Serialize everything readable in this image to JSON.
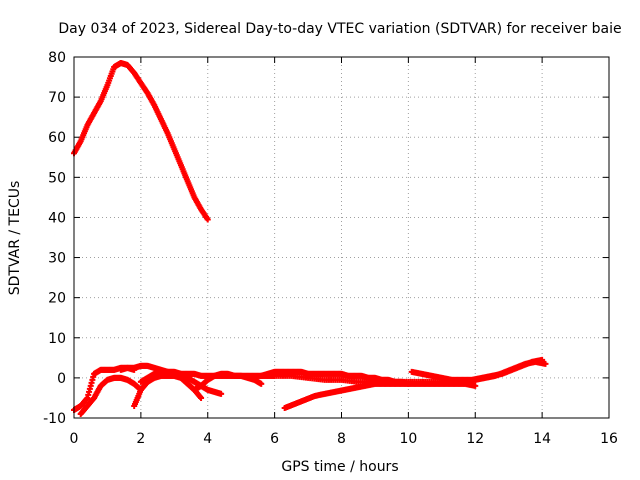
{
  "chart_data": {
    "type": "scatter",
    "title": "Day 034 of 2023, Sidereal Day-to-day VTEC variation (SDTVAR) for receiver baie",
    "xlabel": "GPS time / hours",
    "ylabel": "SDTVAR / TECUs",
    "xlim": [
      0,
      16
    ],
    "ylim": [
      -10,
      80
    ],
    "x_ticks": [
      "0",
      "2",
      "4",
      "6",
      "8",
      "10",
      "12",
      "14",
      "16"
    ],
    "y_ticks": [
      "-10",
      "0",
      "10",
      "20",
      "30",
      "40",
      "50",
      "60",
      "70",
      "80"
    ],
    "grid": true,
    "marker_color": "#ff0000",
    "series": [
      {
        "name": "arc-high",
        "x": [
          0,
          0.2,
          0.4,
          0.6,
          0.8,
          1.0,
          1.2,
          1.4,
          1.6,
          1.8,
          2.0,
          2.2,
          2.4,
          2.6,
          2.8,
          3.0,
          3.2,
          3.4,
          3.6,
          3.8,
          4.0
        ],
        "y": [
          56,
          59,
          63,
          66,
          69,
          73,
          77.5,
          78.5,
          78,
          76,
          73.5,
          71,
          68,
          64.5,
          61,
          57,
          53,
          49,
          45,
          42,
          39.5
        ]
      },
      {
        "name": "arc-low-1",
        "x": [
          0,
          0.2,
          0.4,
          0.6,
          0.8,
          1.0,
          1.2,
          1.4,
          1.6,
          1.8
        ],
        "y": [
          -8,
          -7,
          -5,
          1,
          2,
          2,
          2,
          2.5,
          2.5,
          2
        ]
      },
      {
        "name": "arc-low-2",
        "x": [
          0.2,
          0.4,
          0.6,
          0.8,
          1.0,
          1.2,
          1.4,
          1.6,
          1.8,
          2.0
        ],
        "y": [
          -9,
          -7,
          -5,
          -2,
          -0.5,
          0,
          0,
          -0.5,
          -1.5,
          -3
        ]
      },
      {
        "name": "arc-low-3",
        "x": [
          1.4,
          1.6,
          1.8,
          2.0,
          2.2,
          2.4,
          2.6,
          2.8,
          3.0,
          3.2,
          3.4,
          3.6,
          3.8,
          4.0,
          4.2,
          4.4,
          4.6,
          4.8,
          5.0,
          5.2,
          5.4,
          5.6,
          5.8,
          6.0
        ],
        "y": [
          2,
          2.5,
          2.5,
          3,
          3,
          2.5,
          2,
          1.5,
          1.5,
          1,
          1,
          1,
          0.5,
          0.5,
          0.5,
          0.5,
          0.5,
          0.5,
          0.5,
          0.5,
          0.5,
          0.5,
          0.5,
          0.5
        ]
      },
      {
        "name": "arc-low-4",
        "x": [
          1.8,
          2.0,
          2.2,
          2.4,
          2.6,
          2.8,
          3.0,
          3.2,
          3.4,
          3.6,
          3.8
        ],
        "y": [
          -7,
          -3,
          -1,
          0,
          0.5,
          0.5,
          0.5,
          0,
          -1.5,
          -3,
          -5
        ]
      },
      {
        "name": "arc-low-5",
        "x": [
          2.0,
          2.2,
          2.4,
          2.6,
          2.8,
          3.0,
          3.2,
          3.4,
          3.6,
          3.8,
          4.0,
          4.2,
          4.4
        ],
        "y": [
          -1,
          0,
          1,
          1.5,
          1.5,
          1,
          0.5,
          0,
          -1,
          -2,
          -3,
          -3.5,
          -4
        ]
      },
      {
        "name": "arc-low-6",
        "x": [
          3.6,
          3.8,
          4.0,
          4.2,
          4.4,
          4.6,
          4.8,
          5.0,
          5.2,
          5.4,
          5.6
        ],
        "y": [
          -3,
          -2,
          -0.5,
          0.5,
          1,
          1,
          0.5,
          0.5,
          0,
          -0.5,
          -1.5
        ]
      },
      {
        "name": "arc-low-7",
        "x": [
          5.6,
          5.8,
          6.0,
          6.2,
          6.4,
          6.6,
          6.8,
          7.0,
          7.2,
          7.4,
          7.6,
          7.8,
          8.0,
          8.2,
          8.4,
          8.6,
          8.8,
          9.0,
          9.2,
          9.4,
          9.6,
          9.8,
          10.0
        ],
        "y": [
          0.5,
          1,
          1.5,
          1.5,
          1.5,
          1.5,
          1.5,
          1,
          1,
          1,
          1,
          1,
          1,
          0.5,
          0.5,
          0.5,
          0,
          0,
          -0.5,
          -0.5,
          -1,
          -1,
          -1.5
        ]
      },
      {
        "name": "arc-low-8",
        "x": [
          6.3,
          6.6,
          6.9,
          7.2,
          7.5,
          7.8,
          8.1,
          8.4,
          8.7,
          9.0,
          9.3,
          9.6,
          9.9,
          10.2,
          10.5,
          10.8,
          11.1,
          11.4,
          11.7,
          12.0
        ],
        "y": [
          -7.5,
          -6.5,
          -5.5,
          -4.5,
          -4,
          -3.5,
          -3,
          -2.5,
          -2,
          -1.5,
          -1.5,
          -1.5,
          -1.5,
          -1.5,
          -1.5,
          -1.5,
          -1.5,
          -1.5,
          -1.5,
          -2
        ]
      },
      {
        "name": "arc-low-9",
        "x": [
          6.0,
          6.5,
          7.0,
          7.5,
          8.0,
          8.5,
          9.0,
          9.5,
          10.0,
          10.5,
          11.0,
          11.5,
          12.0
        ],
        "y": [
          0.5,
          0.5,
          0,
          -0.5,
          -0.5,
          -1,
          -1,
          -1,
          -1,
          -1,
          -1,
          -1,
          -0.5
        ]
      },
      {
        "name": "arc-low-10",
        "x": [
          10.1,
          10.4,
          10.7,
          11.0,
          11.3,
          11.6,
          11.9,
          12.2,
          12.5,
          12.8,
          13.1,
          13.4,
          13.7,
          14.0
        ],
        "y": [
          1.5,
          1,
          0.5,
          0,
          -0.5,
          -0.5,
          -0.5,
          0,
          0.5,
          1,
          2,
          3,
          4,
          4.5
        ]
      },
      {
        "name": "arc-low-11",
        "x": [
          12.0,
          12.3,
          12.6,
          12.9,
          13.2,
          13.5,
          13.8,
          14.1
        ],
        "y": [
          -0.5,
          0,
          0.5,
          1.5,
          2.5,
          3.5,
          4,
          3.5
        ]
      }
    ]
  }
}
